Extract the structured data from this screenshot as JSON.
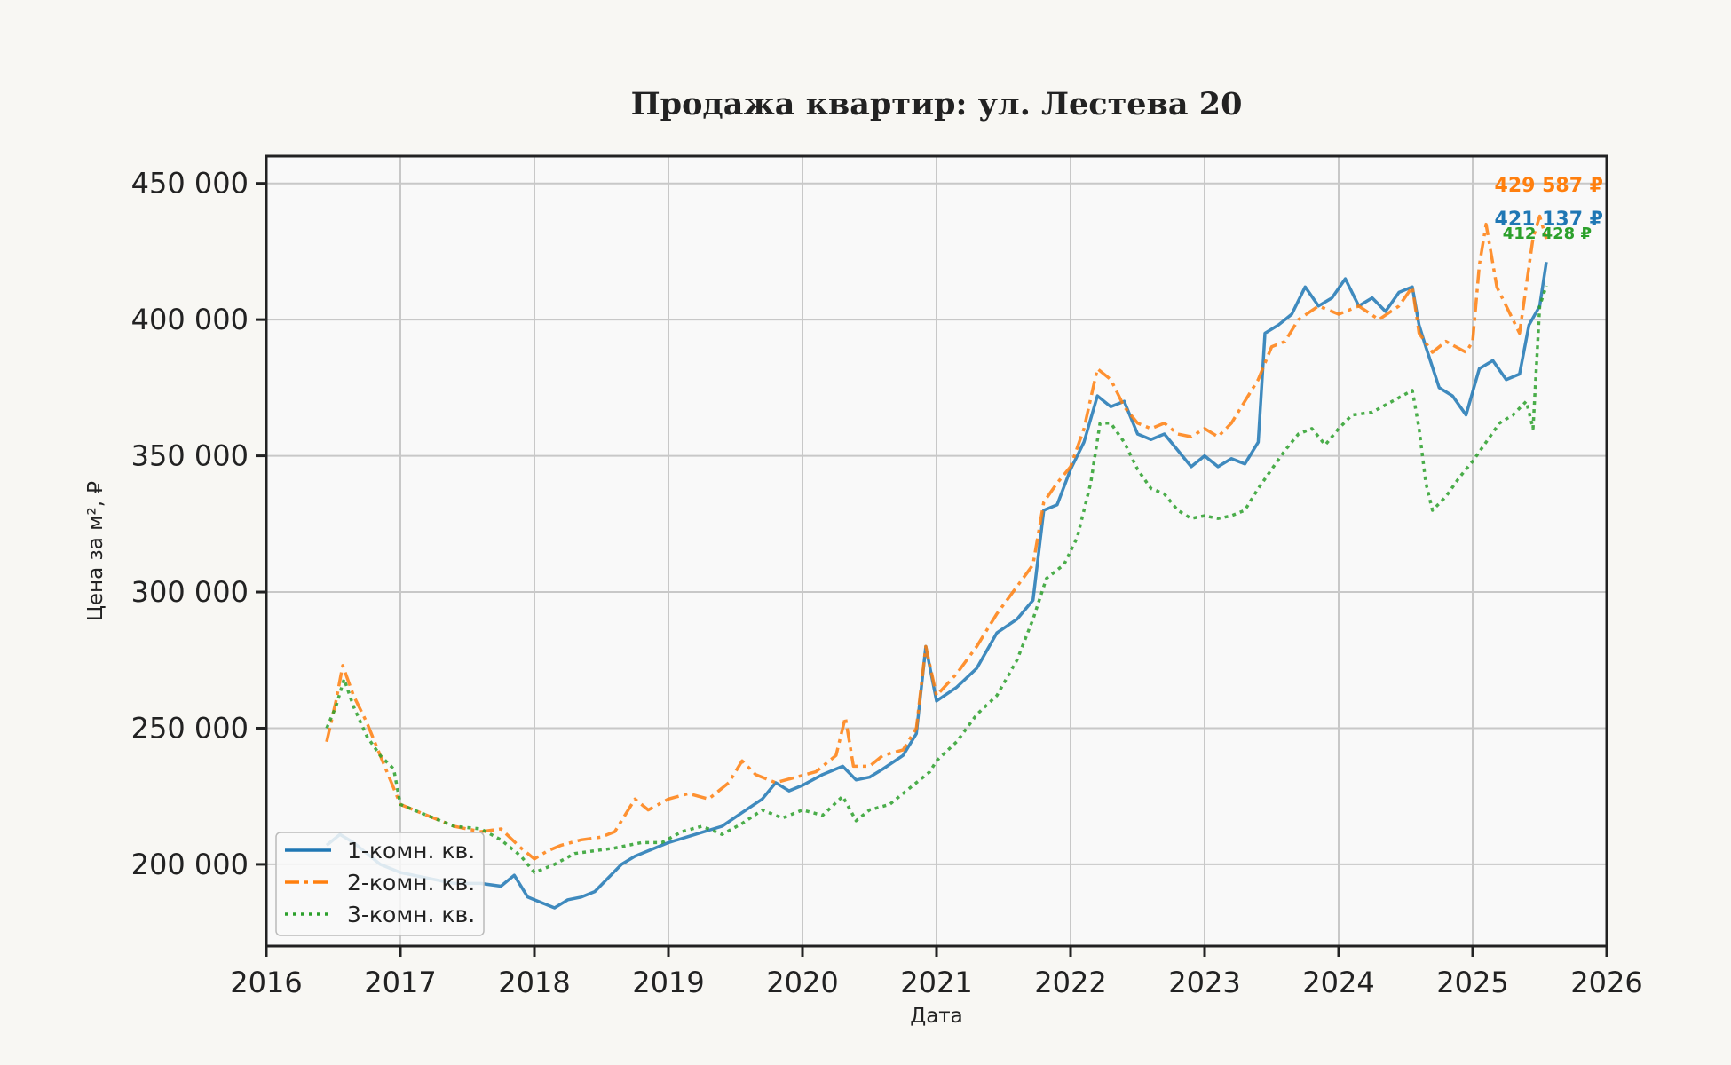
{
  "chart_data": {
    "type": "line",
    "title": "Продажа квартир: ул. Лестева 20",
    "xlabel": "Дата",
    "ylabel": "Цена за м², ₽",
    "xlim": [
      2016,
      2026
    ],
    "ylim": [
      170000,
      460000
    ],
    "x_ticks": [
      "2016",
      "2017",
      "2018",
      "2019",
      "2020",
      "2021",
      "2022",
      "2023",
      "2024",
      "2025",
      "2026"
    ],
    "y_ticks": [
      "200 000",
      "250 000",
      "300 000",
      "350 000",
      "400 000",
      "450 000"
    ],
    "y_tick_values": [
      200000,
      250000,
      300000,
      350000,
      400000,
      450000
    ],
    "grid": true,
    "legend_position": "lower-left",
    "series": [
      {
        "name": "1-комн. кв.",
        "color": "#1f77b4",
        "style": "solid",
        "end_label": "421 137 ₽",
        "points": [
          [
            2016.45,
            207000
          ],
          [
            2016.55,
            211000
          ],
          [
            2016.65,
            208000
          ],
          [
            2016.75,
            204000
          ],
          [
            2016.85,
            200000
          ],
          [
            2017.0,
            197000
          ],
          [
            2017.2,
            195000
          ],
          [
            2017.4,
            193000
          ],
          [
            2017.6,
            193000
          ],
          [
            2017.75,
            192000
          ],
          [
            2017.85,
            196000
          ],
          [
            2017.95,
            188000
          ],
          [
            2018.05,
            186000
          ],
          [
            2018.15,
            184000
          ],
          [
            2018.25,
            187000
          ],
          [
            2018.35,
            188000
          ],
          [
            2018.45,
            190000
          ],
          [
            2018.55,
            195000
          ],
          [
            2018.65,
            200000
          ],
          [
            2018.75,
            203000
          ],
          [
            2018.85,
            205000
          ],
          [
            2019.0,
            208000
          ],
          [
            2019.2,
            211000
          ],
          [
            2019.4,
            214000
          ],
          [
            2019.55,
            219000
          ],
          [
            2019.7,
            224000
          ],
          [
            2019.8,
            230000
          ],
          [
            2019.9,
            227000
          ],
          [
            2020.0,
            229000
          ],
          [
            2020.15,
            233000
          ],
          [
            2020.3,
            236000
          ],
          [
            2020.4,
            231000
          ],
          [
            2020.5,
            232000
          ],
          [
            2020.6,
            235000
          ],
          [
            2020.75,
            240000
          ],
          [
            2020.85,
            248000
          ],
          [
            2020.92,
            280000
          ],
          [
            2021.0,
            260000
          ],
          [
            2021.15,
            265000
          ],
          [
            2021.3,
            272000
          ],
          [
            2021.45,
            285000
          ],
          [
            2021.6,
            290000
          ],
          [
            2021.72,
            297000
          ],
          [
            2021.8,
            330000
          ],
          [
            2021.9,
            332000
          ],
          [
            2022.0,
            345000
          ],
          [
            2022.1,
            355000
          ],
          [
            2022.2,
            372000
          ],
          [
            2022.3,
            368000
          ],
          [
            2022.4,
            370000
          ],
          [
            2022.5,
            358000
          ],
          [
            2022.6,
            356000
          ],
          [
            2022.7,
            358000
          ],
          [
            2022.8,
            352000
          ],
          [
            2022.9,
            346000
          ],
          [
            2023.0,
            350000
          ],
          [
            2023.1,
            346000
          ],
          [
            2023.2,
            349000
          ],
          [
            2023.3,
            347000
          ],
          [
            2023.4,
            355000
          ],
          [
            2023.45,
            395000
          ],
          [
            2023.55,
            398000
          ],
          [
            2023.65,
            402000
          ],
          [
            2023.75,
            412000
          ],
          [
            2023.85,
            405000
          ],
          [
            2023.95,
            408000
          ],
          [
            2024.05,
            415000
          ],
          [
            2024.15,
            405000
          ],
          [
            2024.25,
            408000
          ],
          [
            2024.35,
            403000
          ],
          [
            2024.45,
            410000
          ],
          [
            2024.55,
            412000
          ],
          [
            2024.6,
            398000
          ],
          [
            2024.65,
            390000
          ],
          [
            2024.75,
            375000
          ],
          [
            2024.85,
            372000
          ],
          [
            2024.95,
            365000
          ],
          [
            2025.05,
            382000
          ],
          [
            2025.15,
            385000
          ],
          [
            2025.25,
            378000
          ],
          [
            2025.35,
            380000
          ],
          [
            2025.42,
            398000
          ],
          [
            2025.5,
            405000
          ],
          [
            2025.55,
            421137
          ]
        ]
      },
      {
        "name": "2-комн. кв.",
        "color": "#ff7f0e",
        "style": "dashdot",
        "end_label": "429 587 ₽",
        "points": [
          [
            2016.45,
            245000
          ],
          [
            2016.52,
            260000
          ],
          [
            2016.57,
            273000
          ],
          [
            2016.65,
            262000
          ],
          [
            2016.75,
            252000
          ],
          [
            2016.85,
            240000
          ],
          [
            2016.95,
            228000
          ],
          [
            2017.0,
            222000
          ],
          [
            2017.2,
            218000
          ],
          [
            2017.4,
            214000
          ],
          [
            2017.6,
            212000
          ],
          [
            2017.75,
            213000
          ],
          [
            2017.9,
            206000
          ],
          [
            2018.0,
            202000
          ],
          [
            2018.1,
            205000
          ],
          [
            2018.2,
            207000
          ],
          [
            2018.35,
            209000
          ],
          [
            2018.5,
            210000
          ],
          [
            2018.6,
            212000
          ],
          [
            2018.75,
            224000
          ],
          [
            2018.85,
            220000
          ],
          [
            2019.0,
            224000
          ],
          [
            2019.15,
            226000
          ],
          [
            2019.3,
            224000
          ],
          [
            2019.45,
            230000
          ],
          [
            2019.55,
            238000
          ],
          [
            2019.65,
            233000
          ],
          [
            2019.8,
            230000
          ],
          [
            2019.95,
            232000
          ],
          [
            2020.1,
            234000
          ],
          [
            2020.25,
            240000
          ],
          [
            2020.32,
            254000
          ],
          [
            2020.38,
            236000
          ],
          [
            2020.5,
            236000
          ],
          [
            2020.6,
            240000
          ],
          [
            2020.75,
            242000
          ],
          [
            2020.85,
            250000
          ],
          [
            2020.92,
            280000
          ],
          [
            2021.0,
            262000
          ],
          [
            2021.15,
            270000
          ],
          [
            2021.3,
            280000
          ],
          [
            2021.45,
            292000
          ],
          [
            2021.6,
            302000
          ],
          [
            2021.72,
            310000
          ],
          [
            2021.8,
            333000
          ],
          [
            2021.9,
            340000
          ],
          [
            2022.0,
            346000
          ],
          [
            2022.1,
            360000
          ],
          [
            2022.2,
            382000
          ],
          [
            2022.3,
            378000
          ],
          [
            2022.4,
            368000
          ],
          [
            2022.5,
            362000
          ],
          [
            2022.6,
            360000
          ],
          [
            2022.7,
            362000
          ],
          [
            2022.8,
            358000
          ],
          [
            2022.9,
            357000
          ],
          [
            2023.0,
            360000
          ],
          [
            2023.1,
            357000
          ],
          [
            2023.2,
            362000
          ],
          [
            2023.3,
            370000
          ],
          [
            2023.4,
            378000
          ],
          [
            2023.5,
            390000
          ],
          [
            2023.6,
            392000
          ],
          [
            2023.7,
            400000
          ],
          [
            2023.85,
            405000
          ],
          [
            2024.0,
            402000
          ],
          [
            2024.15,
            405000
          ],
          [
            2024.3,
            400000
          ],
          [
            2024.45,
            405000
          ],
          [
            2024.55,
            412000
          ],
          [
            2024.6,
            395000
          ],
          [
            2024.7,
            388000
          ],
          [
            2024.8,
            392000
          ],
          [
            2024.95,
            388000
          ],
          [
            2025.0,
            392000
          ],
          [
            2025.05,
            420000
          ],
          [
            2025.1,
            435000
          ],
          [
            2025.18,
            412000
          ],
          [
            2025.25,
            405000
          ],
          [
            2025.35,
            395000
          ],
          [
            2025.45,
            430000
          ],
          [
            2025.5,
            438000
          ],
          [
            2025.55,
            429587
          ]
        ]
      },
      {
        "name": "3-комн. кв.",
        "color": "#2ca02c",
        "style": "dotted",
        "end_label": "412 428 ₽",
        "points": [
          [
            2016.45,
            250000
          ],
          [
            2016.52,
            258000
          ],
          [
            2016.58,
            268000
          ],
          [
            2016.65,
            258000
          ],
          [
            2016.75,
            247000
          ],
          [
            2016.85,
            240000
          ],
          [
            2016.95,
            235000
          ],
          [
            2017.0,
            222000
          ],
          [
            2017.2,
            218000
          ],
          [
            2017.4,
            214000
          ],
          [
            2017.6,
            213000
          ],
          [
            2017.75,
            209000
          ],
          [
            2017.9,
            203000
          ],
          [
            2018.0,
            197000
          ],
          [
            2018.15,
            200000
          ],
          [
            2018.3,
            204000
          ],
          [
            2018.45,
            205000
          ],
          [
            2018.6,
            206000
          ],
          [
            2018.8,
            208000
          ],
          [
            2018.95,
            208000
          ],
          [
            2019.1,
            212000
          ],
          [
            2019.25,
            214000
          ],
          [
            2019.4,
            211000
          ],
          [
            2019.55,
            215000
          ],
          [
            2019.7,
            220000
          ],
          [
            2019.85,
            217000
          ],
          [
            2020.0,
            220000
          ],
          [
            2020.15,
            218000
          ],
          [
            2020.3,
            225000
          ],
          [
            2020.4,
            216000
          ],
          [
            2020.5,
            220000
          ],
          [
            2020.65,
            222000
          ],
          [
            2020.8,
            228000
          ],
          [
            2020.95,
            234000
          ],
          [
            2021.0,
            238000
          ],
          [
            2021.15,
            245000
          ],
          [
            2021.3,
            255000
          ],
          [
            2021.45,
            262000
          ],
          [
            2021.6,
            275000
          ],
          [
            2021.72,
            290000
          ],
          [
            2021.82,
            305000
          ],
          [
            2021.95,
            310000
          ],
          [
            2022.05,
            320000
          ],
          [
            2022.15,
            340000
          ],
          [
            2022.22,
            362000
          ],
          [
            2022.3,
            362000
          ],
          [
            2022.4,
            355000
          ],
          [
            2022.5,
            345000
          ],
          [
            2022.6,
            338000
          ],
          [
            2022.7,
            336000
          ],
          [
            2022.8,
            330000
          ],
          [
            2022.9,
            327000
          ],
          [
            2023.0,
            328000
          ],
          [
            2023.1,
            327000
          ],
          [
            2023.2,
            328000
          ],
          [
            2023.3,
            330000
          ],
          [
            2023.4,
            338000
          ],
          [
            2023.5,
            345000
          ],
          [
            2023.6,
            352000
          ],
          [
            2023.7,
            358000
          ],
          [
            2023.8,
            360000
          ],
          [
            2023.9,
            354000
          ],
          [
            2024.0,
            360000
          ],
          [
            2024.1,
            365000
          ],
          [
            2024.25,
            366000
          ],
          [
            2024.4,
            370000
          ],
          [
            2024.55,
            374000
          ],
          [
            2024.6,
            360000
          ],
          [
            2024.65,
            340000
          ],
          [
            2024.7,
            330000
          ],
          [
            2024.8,
            335000
          ],
          [
            2024.9,
            342000
          ],
          [
            2025.0,
            348000
          ],
          [
            2025.1,
            355000
          ],
          [
            2025.2,
            362000
          ],
          [
            2025.3,
            365000
          ],
          [
            2025.4,
            370000
          ],
          [
            2025.45,
            360000
          ],
          [
            2025.5,
            405000
          ],
          [
            2025.55,
            412428
          ]
        ]
      }
    ]
  }
}
